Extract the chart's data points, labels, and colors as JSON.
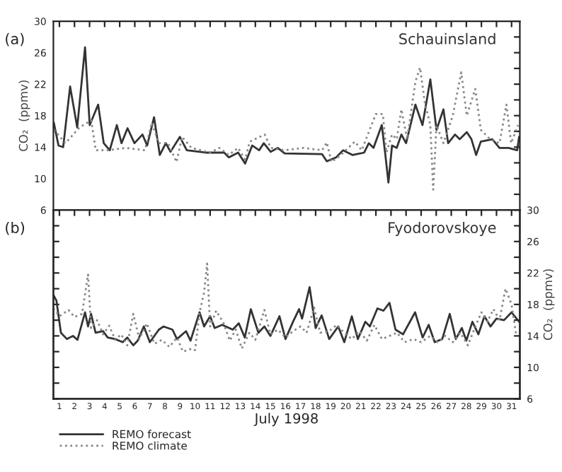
{
  "chart_data": [
    {
      "type": "line",
      "title": "Schauinsland",
      "ylabel": "CO₂  (ppmv)",
      "annotations": [
        "(a)"
      ],
      "xlim": [
        0.6,
        31.55
      ],
      "ylim": [
        6,
        30
      ],
      "xticks": [
        {
          "value": 1,
          "label": null
        },
        {
          "value": 2,
          "label": null
        },
        {
          "value": 3,
          "label": null
        },
        {
          "value": 4,
          "label": null
        },
        {
          "value": 5,
          "label": null
        },
        {
          "value": 6,
          "label": null
        },
        {
          "value": 7,
          "label": null
        },
        {
          "value": 8,
          "label": null
        },
        {
          "value": 9,
          "label": null
        },
        {
          "value": 10,
          "label": null
        },
        {
          "value": 11,
          "label": null
        },
        {
          "value": 12,
          "label": null
        },
        {
          "value": 13,
          "label": null
        },
        {
          "value": 14,
          "label": null
        },
        {
          "value": 15,
          "label": null
        },
        {
          "value": 16,
          "label": null
        },
        {
          "value": 17,
          "label": null
        },
        {
          "value": 18,
          "label": null
        },
        {
          "value": 19,
          "label": null
        },
        {
          "value": 20,
          "label": null
        },
        {
          "value": 21,
          "label": null
        },
        {
          "value": 22,
          "label": null
        },
        {
          "value": 23,
          "label": null
        },
        {
          "value": 24,
          "label": null
        },
        {
          "value": 25,
          "label": null
        },
        {
          "value": 26,
          "label": null
        },
        {
          "value": 27,
          "label": null
        },
        {
          "value": 28,
          "label": null
        },
        {
          "value": 29,
          "label": null
        },
        {
          "value": 30,
          "label": null
        },
        {
          "value": 31,
          "label": null
        }
      ],
      "yticks": [
        6,
        {
          "value": 8,
          "label": null
        },
        10,
        {
          "value": 12,
          "label": null
        },
        14,
        {
          "value": 16,
          "label": null
        },
        18,
        {
          "value": 20,
          "label": null
        },
        22,
        {
          "value": 24,
          "label": null
        },
        26,
        {
          "value": 28,
          "label": null
        },
        30
      ],
      "tick_labels": "y",
      "grid": false,
      "legend": false,
      "series": [
        {
          "color": "#333333",
          "line_style": "solid",
          "x": [
            0.63,
            0.94,
            1.25,
            1.71,
            2.18,
            2.7,
            3.01,
            3.57,
            3.94,
            4.34,
            4.81,
            5.12,
            5.52,
            5.98,
            6.51,
            6.82,
            7.28,
            7.66,
            8.06,
            8.37,
            8.99,
            9.45,
            10.69,
            11.93,
            12.24,
            12.86,
            13.32,
            13.79,
            14.25,
            14.56,
            15.02,
            15.49,
            15.95,
            18.43,
            18.74,
            19.36,
            19.82,
            20.44,
            21.22,
            21.53,
            21.84,
            22.39,
            22.61,
            22.83,
            23.07,
            23.38,
            23.69,
            24.0,
            24.62,
            25.09,
            25.61,
            26.02,
            26.48,
            26.79,
            27.25,
            27.56,
            28.03,
            28.34,
            28.65,
            28.96,
            29.73,
            30.2,
            30.81,
            31.37,
            31.5
          ],
          "values": [
            17.1,
            14.2,
            14.0,
            21.7,
            16.5,
            26.7,
            16.8,
            19.4,
            14.5,
            13.6,
            16.8,
            14.5,
            16.4,
            14.5,
            15.6,
            14.2,
            17.8,
            13.0,
            14.5,
            13.4,
            15.3,
            13.6,
            13.3,
            13.3,
            12.7,
            13.3,
            11.9,
            14.2,
            13.6,
            14.5,
            13.4,
            13.9,
            13.2,
            13.1,
            12.2,
            12.7,
            13.6,
            13.0,
            13.3,
            14.5,
            13.9,
            16.8,
            13.3,
            9.5,
            14.2,
            13.9,
            15.6,
            14.5,
            19.4,
            16.8,
            22.6,
            16.2,
            18.8,
            14.5,
            15.6,
            15.0,
            15.9,
            15.0,
            13.0,
            14.7,
            15.0,
            13.9,
            13.9,
            13.6,
            15.3
          ]
        },
        {
          "color": "#888888",
          "line_style": "dotted",
          "x": [
            0.63,
            1.4,
            2.33,
            3.11,
            3.41,
            4.19,
            5.43,
            6.67,
            7.13,
            7.59,
            8.21,
            8.77,
            9.14,
            9.76,
            11.0,
            11.62,
            12.24,
            12.86,
            13.32,
            13.63,
            14.62,
            15.02,
            15.95,
            17.19,
            18.43,
            18.74,
            19.05,
            19.67,
            20.6,
            21.06,
            21.99,
            22.46,
            22.7,
            23.07,
            23.38,
            23.69,
            24.07,
            24.62,
            24.93,
            25.24,
            25.61,
            25.8,
            26.02,
            26.48,
            27.1,
            27.66,
            28.03,
            28.59,
            28.96,
            29.58,
            30.2,
            30.66,
            30.97,
            31.43
          ],
          "values": [
            16.2,
            14.5,
            16.5,
            17.4,
            13.6,
            13.6,
            13.9,
            13.6,
            17.1,
            14.5,
            14.5,
            12.1,
            15.3,
            13.9,
            13.3,
            13.9,
            13.0,
            13.9,
            12.4,
            14.7,
            15.6,
            13.9,
            13.6,
            13.9,
            13.6,
            14.6,
            12.1,
            13.0,
            14.7,
            13.6,
            18.2,
            18.2,
            13.3,
            15.6,
            15.0,
            18.8,
            15.0,
            22.3,
            24.1,
            19.7,
            16.8,
            8.6,
            16.8,
            14.5,
            18.0,
            23.5,
            18.0,
            21.4,
            16.2,
            15.0,
            14.5,
            19.4,
            14.5,
            16.8
          ]
        }
      ]
    },
    {
      "type": "line",
      "title": "Fyodorovskoye",
      "xlabel": "July 1998",
      "y2label": "CO₂  (ppmv)",
      "annotations": [
        "(b)"
      ],
      "xlim": [
        0.6,
        31.55
      ],
      "y2lim": [
        6,
        30
      ],
      "xticks": [
        1,
        2,
        3,
        4,
        5,
        6,
        7,
        8,
        9,
        10,
        11,
        12,
        13,
        14,
        15,
        16,
        17,
        18,
        19,
        20,
        21,
        22,
        23,
        24,
        25,
        26,
        27,
        28,
        29,
        30,
        31
      ],
      "y2ticks": [
        6,
        {
          "value": 8,
          "label": null
        },
        10,
        {
          "value": 12,
          "label": null
        },
        14,
        {
          "value": 16,
          "label": null
        },
        18,
        {
          "value": 20,
          "label": null
        },
        22,
        {
          "value": 24,
          "label": null
        },
        26,
        {
          "value": 28,
          "label": null
        },
        30
      ],
      "grid": false,
      "legend": "bottom",
      "series": [
        {
          "name": "REMO forecast",
          "color": "#333333",
          "line_style": "solid",
          "axis": "y2",
          "x": [
            0.6,
            0.8,
            1.1,
            1.5,
            1.9,
            2.2,
            2.7,
            2.9,
            3.1,
            3.4,
            3.9,
            4.2,
            4.7,
            5.2,
            5.5,
            5.9,
            6.2,
            6.6,
            7.0,
            7.6,
            7.9,
            8.5,
            8.8,
            9.4,
            9.7,
            10.3,
            10.6,
            11.0,
            11.3,
            11.8,
            12.5,
            12.9,
            13.3,
            13.7,
            14.2,
            14.6,
            15.0,
            15.6,
            16.0,
            16.5,
            16.9,
            17.1,
            17.6,
            18.0,
            18.4,
            18.9,
            19.5,
            19.9,
            20.4,
            20.8,
            21.3,
            21.6,
            22.1,
            22.5,
            22.9,
            23.3,
            23.8,
            24.6,
            25.1,
            25.5,
            25.9,
            26.4,
            26.9,
            27.3,
            27.7,
            28.0,
            28.4,
            28.8,
            29.2,
            29.6,
            30.0,
            30.5,
            31.0,
            31.5
          ],
          "values": [
            19.2,
            18.5,
            14.4,
            13.6,
            14.0,
            13.5,
            17.0,
            15.2,
            16.8,
            14.4,
            14.6,
            13.8,
            13.6,
            13.2,
            13.8,
            12.8,
            13.4,
            15.2,
            13.2,
            14.8,
            15.2,
            14.8,
            13.6,
            14.6,
            13.4,
            17.0,
            15.2,
            16.5,
            15.0,
            15.4,
            14.8,
            15.6,
            13.8,
            17.4,
            14.4,
            15.2,
            14.0,
            16.5,
            13.6,
            15.8,
            17.4,
            16.2,
            20.2,
            15.0,
            16.6,
            13.6,
            15.2,
            13.2,
            16.5,
            13.6,
            15.8,
            15.2,
            17.5,
            17.2,
            18.2,
            14.8,
            14.2,
            17.0,
            13.8,
            15.4,
            13.2,
            13.6,
            16.8,
            13.6,
            15.0,
            13.4,
            15.8,
            14.2,
            16.5,
            15.2,
            16.2,
            16.0,
            17.0,
            15.8
          ]
        },
        {
          "name": "REMO climate",
          "color": "#888888",
          "line_style": "dotted",
          "axis": "y2",
          "x": [
            0.6,
            1.0,
            1.6,
            2.0,
            2.5,
            2.9,
            3.1,
            3.5,
            3.9,
            4.3,
            4.7,
            5.1,
            5.5,
            5.9,
            6.3,
            6.8,
            7.3,
            7.8,
            8.3,
            8.8,
            9.2,
            9.8,
            10.0,
            10.3,
            10.6,
            10.8,
            11.0,
            11.4,
            11.9,
            12.3,
            12.7,
            13.1,
            13.6,
            14.0,
            14.6,
            15.0,
            15.5,
            16.0,
            16.5,
            17.0,
            17.4,
            17.9,
            18.3,
            18.9,
            19.4,
            19.9,
            20.4,
            20.9,
            21.4,
            21.9,
            22.4,
            22.9,
            23.4,
            23.9,
            24.5,
            25.0,
            25.6,
            26.1,
            26.6,
            27.1,
            27.6,
            28.1,
            28.6,
            29.0,
            29.4,
            29.8,
            30.2,
            30.6,
            31.0,
            31.3
          ],
          "values": [
            17.5,
            16.5,
            17.3,
            16.4,
            16.8,
            21.8,
            15.0,
            16.0,
            14.2,
            15.3,
            13.5,
            14.2,
            12.8,
            16.8,
            13.6,
            15.6,
            13.0,
            13.5,
            12.6,
            13.8,
            12.0,
            12.4,
            12.2,
            17.0,
            19.5,
            23.2,
            15.2,
            17.2,
            15.6,
            13.4,
            14.8,
            12.4,
            14.4,
            13.5,
            17.3,
            14.2,
            14.8,
            13.8,
            14.6,
            15.2,
            14.4,
            17.6,
            14.4,
            14.6,
            15.4,
            14.4,
            13.6,
            14.6,
            13.4,
            15.4,
            13.6,
            14.0,
            14.4,
            13.2,
            13.6,
            13.2,
            14.0,
            13.2,
            14.0,
            13.2,
            14.4,
            12.8,
            15.2,
            17.0,
            15.8,
            17.4,
            16.0,
            20.0,
            18.0,
            14.2
          ]
        }
      ]
    }
  ]
}
